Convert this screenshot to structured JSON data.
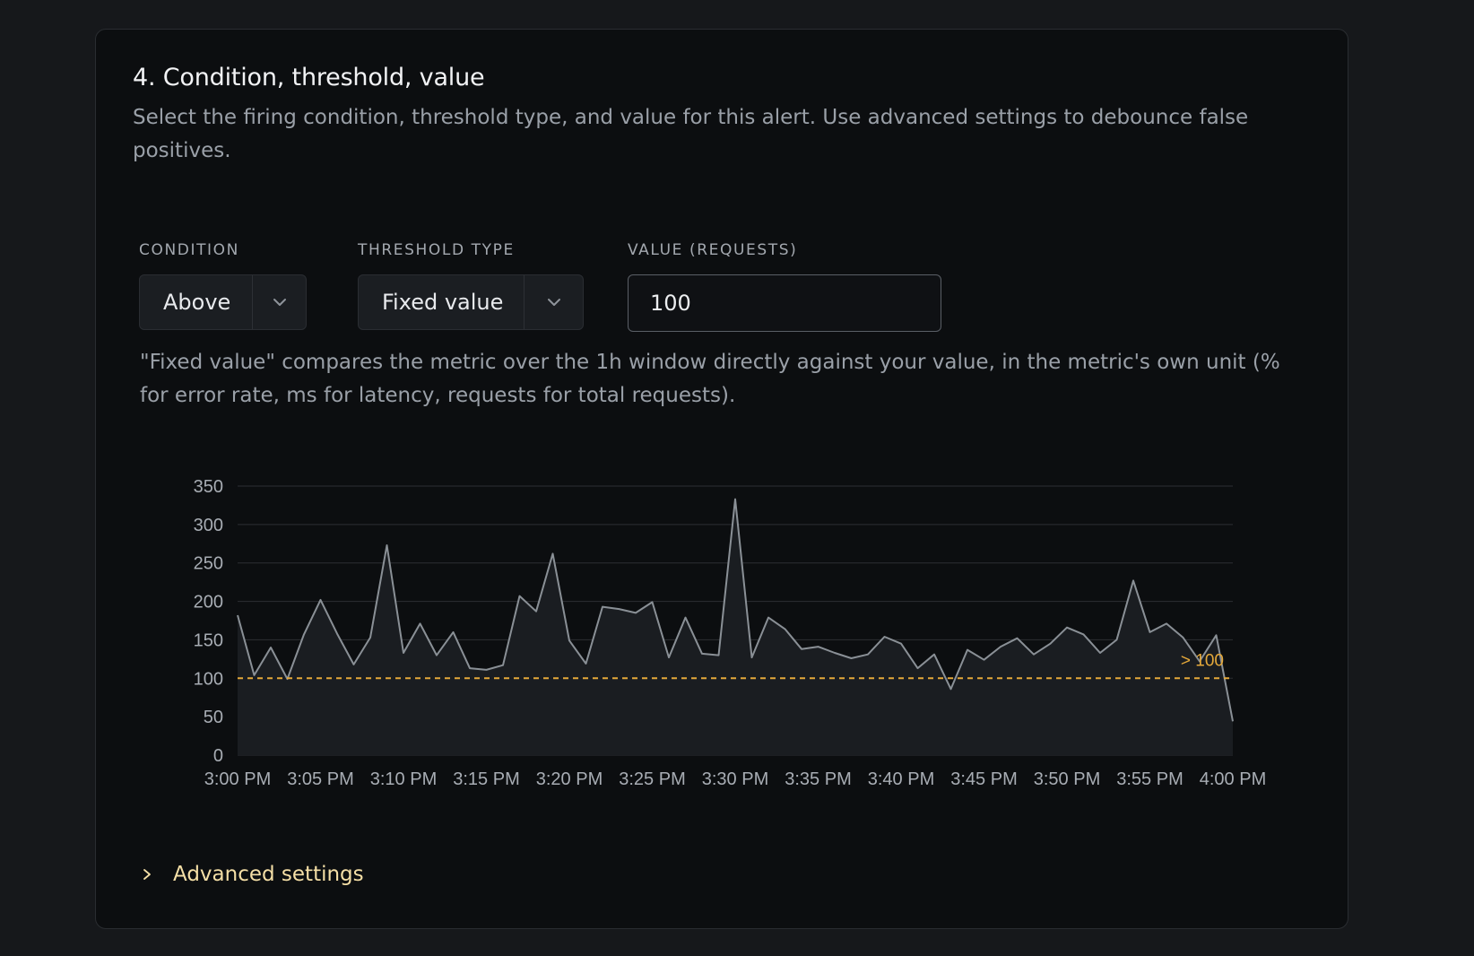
{
  "section": {
    "title": "4. Condition, threshold, value",
    "description": "Select the firing condition, threshold type, and value for this alert. Use advanced settings to debounce false positives."
  },
  "fields": {
    "condition": {
      "label": "CONDITION",
      "value": "Above"
    },
    "threshold_type": {
      "label": "THRESHOLD TYPE",
      "value": "Fixed value"
    },
    "value": {
      "label": "VALUE (REQUESTS)",
      "value": "100"
    }
  },
  "hint": "\"Fixed value\" compares the metric over the 1h window directly against your value, in the metric's own unit (% for error rate, ms for latency, requests for total requests).",
  "advanced": {
    "label": "Advanced settings"
  },
  "icons": {
    "select_chevron": "chevron-down-icon",
    "advanced_chevron": "chevron-right-icon"
  },
  "colors": {
    "series_line": "#8a9096",
    "threshold": "#e5a93a",
    "advanced_text": "#f5dfa6"
  },
  "chart_data": {
    "type": "area",
    "title": "",
    "xlabel": "",
    "ylabel": "",
    "x_ticks": [
      "3:00 PM",
      "3:05 PM",
      "3:10 PM",
      "3:15 PM",
      "3:20 PM",
      "3:25 PM",
      "3:30 PM",
      "3:35 PM",
      "3:40 PM",
      "3:45 PM",
      "3:50 PM",
      "3:55 PM",
      "4:00 PM"
    ],
    "x_range_minutes": [
      0,
      60
    ],
    "ylim": [
      0,
      350
    ],
    "y_ticks": [
      0,
      50,
      100,
      150,
      200,
      250,
      300,
      350
    ],
    "grid": true,
    "threshold": {
      "value": 100,
      "label": "> 100",
      "style": "dashed"
    },
    "series": [
      {
        "x": [
          0,
          1,
          2,
          3,
          4,
          5,
          6,
          7,
          8,
          9,
          10,
          11,
          12,
          13,
          14,
          15,
          16,
          17,
          18,
          19,
          20,
          21,
          22,
          23,
          24,
          25,
          26,
          27,
          28,
          29,
          30,
          31,
          32,
          33,
          34,
          35,
          36,
          37,
          38,
          39,
          40,
          41,
          42,
          43,
          44,
          45,
          46,
          47,
          48,
          49,
          50,
          51,
          52,
          53,
          54,
          55,
          56,
          57,
          58,
          59,
          60
        ],
        "values": [
          182,
          104,
          140,
          99,
          157,
          202,
          158,
          118,
          153,
          273,
          133,
          171,
          130,
          160,
          113,
          111,
          117,
          207,
          187,
          262,
          149,
          119,
          193,
          190,
          185,
          199,
          127,
          179,
          132,
          130,
          333,
          127,
          179,
          164,
          138,
          141,
          133,
          126,
          131,
          154,
          145,
          113,
          131,
          86,
          137,
          124,
          141,
          152,
          131,
          145,
          166,
          157,
          133,
          150,
          227,
          160,
          171,
          153,
          122,
          156,
          44
        ]
      }
    ]
  }
}
